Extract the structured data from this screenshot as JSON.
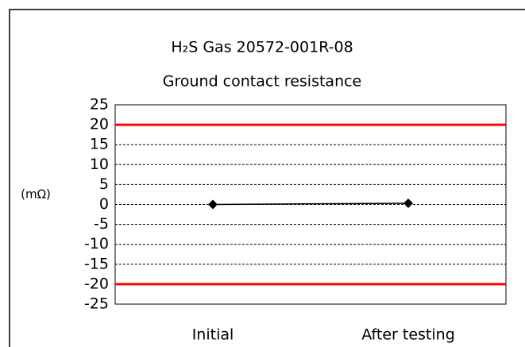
{
  "chart_data": {
    "type": "line",
    "title": "H₂S Gas 20572-001R-08",
    "subtitle": "Ground contact resistance",
    "y_label": "(mΩ)",
    "categories": [
      "Initial",
      "After testing"
    ],
    "series": [
      {
        "name": "Ground contact resistance",
        "color": "#000000",
        "values": [
          0,
          0.3
        ]
      }
    ],
    "limits": [
      20,
      -20
    ],
    "limit_color": "#ff0000",
    "ylim": [
      -25,
      25
    ],
    "yticks": [
      -25,
      -20,
      -15,
      -10,
      -5,
      0,
      5,
      10,
      15,
      20,
      25
    ],
    "grid": true
  }
}
